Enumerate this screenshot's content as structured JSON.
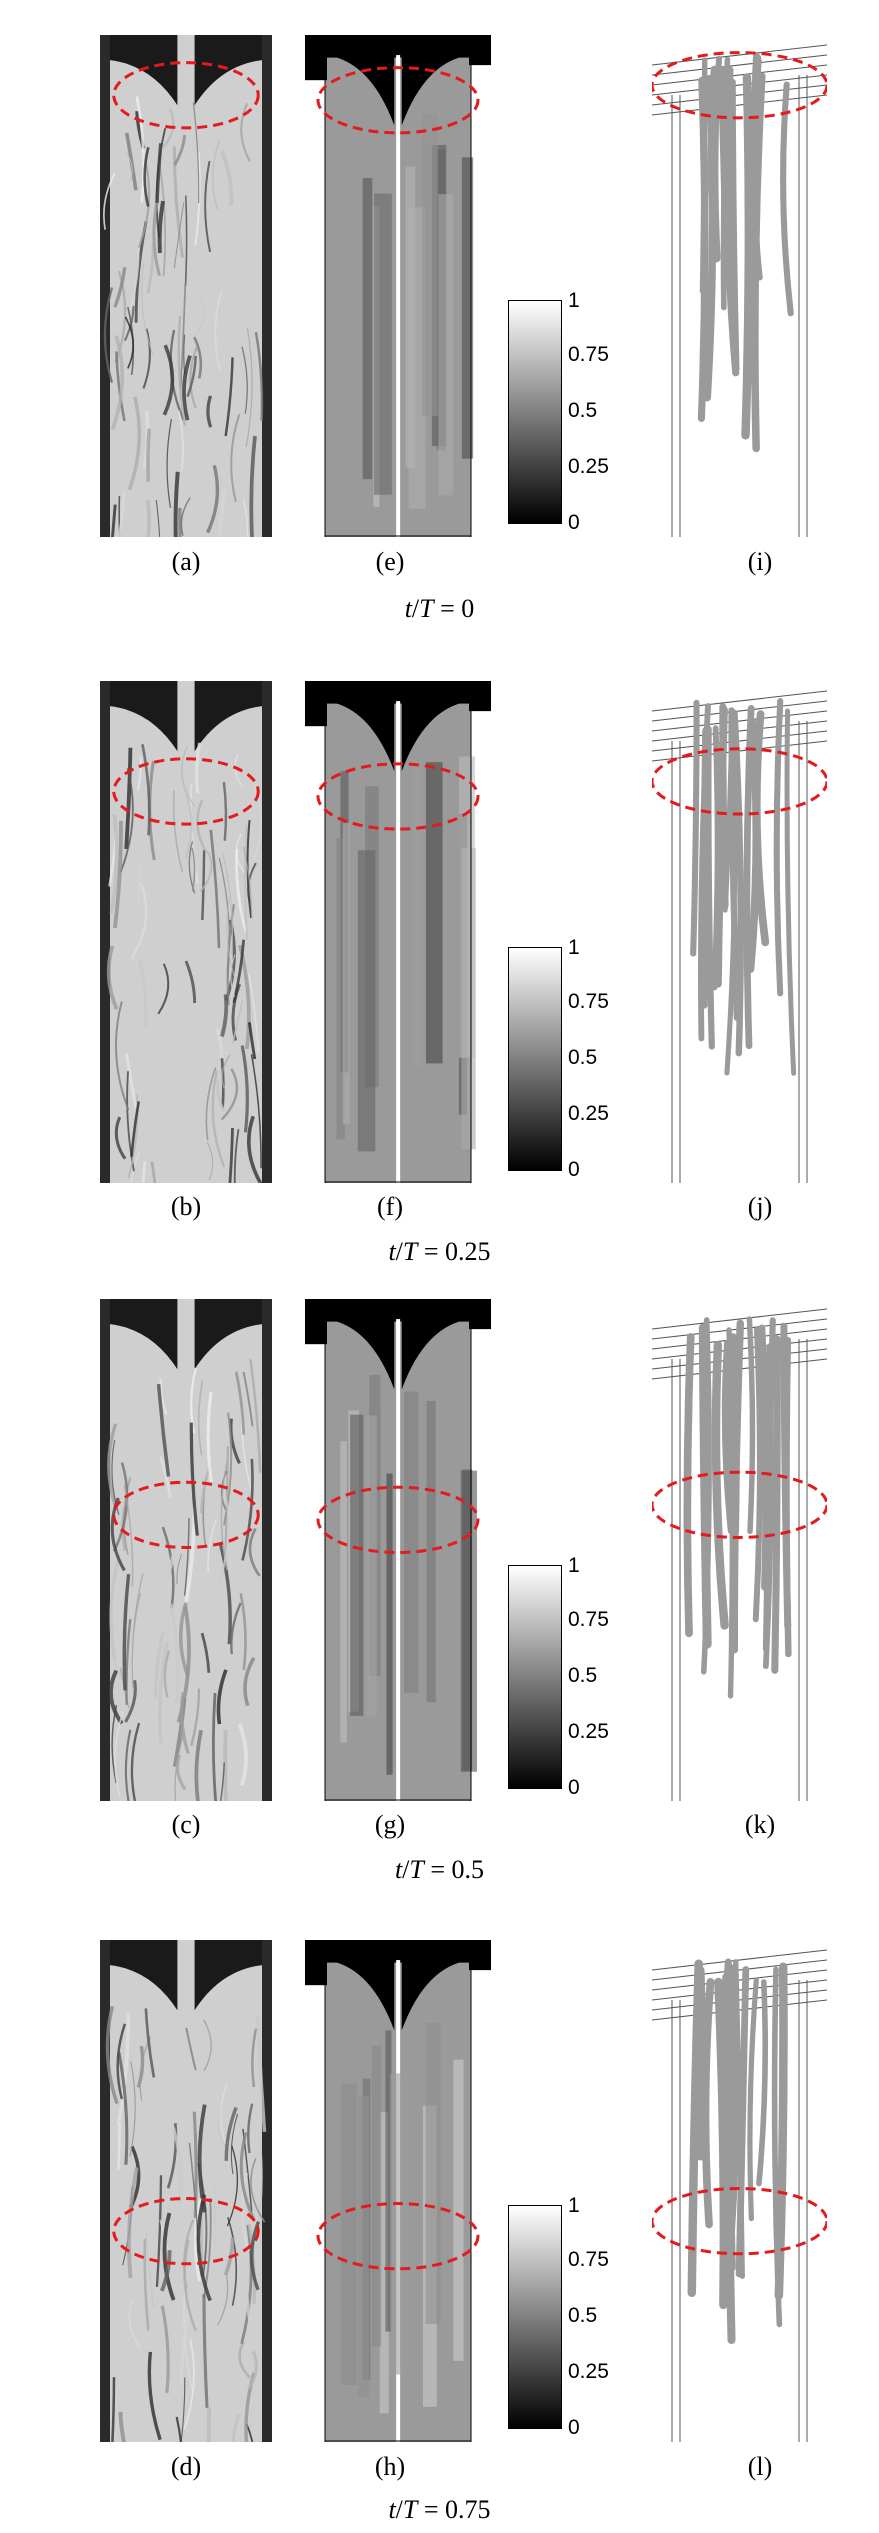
{
  "rows": [
    {
      "caption_t": "t",
      "caption_T": "T",
      "caption_value": "= 0",
      "labels": [
        "(a)",
        "(e)",
        "(i)"
      ]
    },
    {
      "caption_t": "t",
      "caption_T": "T",
      "caption_value": "= 0.25",
      "labels": [
        "(b)",
        "(f)",
        "(j)"
      ]
    },
    {
      "caption_t": "t",
      "caption_T": "T",
      "caption_value": "= 0.5",
      "labels": [
        "(c)",
        "(g)",
        "(k)"
      ]
    },
    {
      "caption_t": "t",
      "caption_T": "T",
      "caption_value": "= 0.75",
      "labels": [
        "(d)",
        "(h)",
        "(l)"
      ]
    }
  ],
  "colorbar": {
    "ticks": [
      "1",
      "0.75",
      "0.5",
      "0.25",
      "0"
    ],
    "colors": {
      "top": "#ffffff",
      "bottom": "#000000"
    }
  },
  "annotation_color": "#e41a1c"
}
